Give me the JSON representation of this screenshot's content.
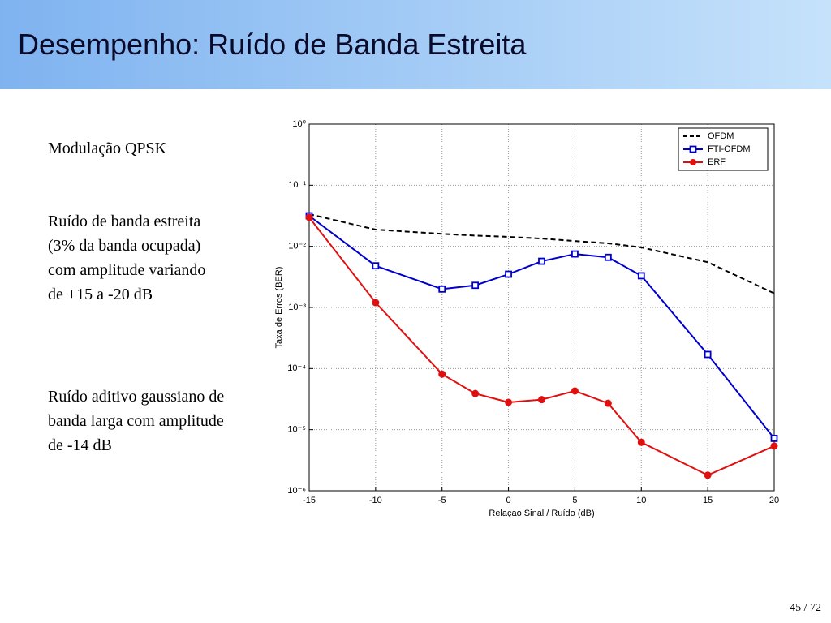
{
  "slide": {
    "title": "Desempenho: Ruído de Banda Estreita",
    "paragraphs": [
      "Modulação QPSK",
      "Ruído de banda estreita (3% da banda ocupada) com amplitude variando de +15 a -20 dB",
      "Ruído aditivo gaussiano de banda larga com amplitude de -14 dB"
    ],
    "page_number": "45 / 72"
  },
  "chart_data": {
    "type": "line",
    "xlabel": "Relaçao Sinal / Ruído (dB)",
    "ylabel": "Taxa de Erros (BER)",
    "x": [
      -15,
      -10,
      -5,
      -2.5,
      0,
      2.5,
      5,
      7.5,
      10,
      15,
      20
    ],
    "series": [
      {
        "name": "OFDM",
        "color": "#000000",
        "linestyle": "dashed",
        "marker": null,
        "values": [
          0.0336,
          0.0188,
          0.016,
          0.015,
          0.0143,
          0.0134,
          0.0122,
          0.0112,
          0.0096,
          0.0055,
          0.0017
        ]
      },
      {
        "name": "FTI-OFDM",
        "color": "#0000cc",
        "linestyle": "solid",
        "marker": "square",
        "values": [
          0.0316,
          0.0048,
          0.002,
          0.0023,
          0.0035,
          0.0057,
          0.0075,
          0.0066,
          0.0033,
          0.00017,
          7.2e-06
        ]
      },
      {
        "name": "ERF",
        "color": "#e01010",
        "linestyle": "solid",
        "marker": "circle",
        "values": [
          0.0297,
          0.0012,
          8.1e-05,
          3.9e-05,
          2.8e-05,
          3.1e-05,
          4.3e-05,
          2.7e-05,
          6.2e-06,
          1.8e-06,
          5.4e-06
        ]
      }
    ],
    "xlim": [
      -15,
      20
    ],
    "xticks": [
      -15,
      -10,
      -5,
      0,
      5,
      10,
      15,
      20
    ],
    "ylim": [
      1e-06,
      1
    ],
    "log_y": true,
    "yticks": [
      {
        "value": 1e-06,
        "label": "10⁻⁶"
      },
      {
        "value": 1e-05,
        "label": "10⁻⁵"
      },
      {
        "value": 0.0001,
        "label": "10⁻⁴"
      },
      {
        "value": 0.001,
        "label": "10⁻³"
      },
      {
        "value": 0.01,
        "label": "10⁻²"
      },
      {
        "value": 0.1,
        "label": "10⁻¹"
      },
      {
        "value": 1,
        "label": "10⁰"
      }
    ],
    "grid": true,
    "legend": "upper right"
  }
}
